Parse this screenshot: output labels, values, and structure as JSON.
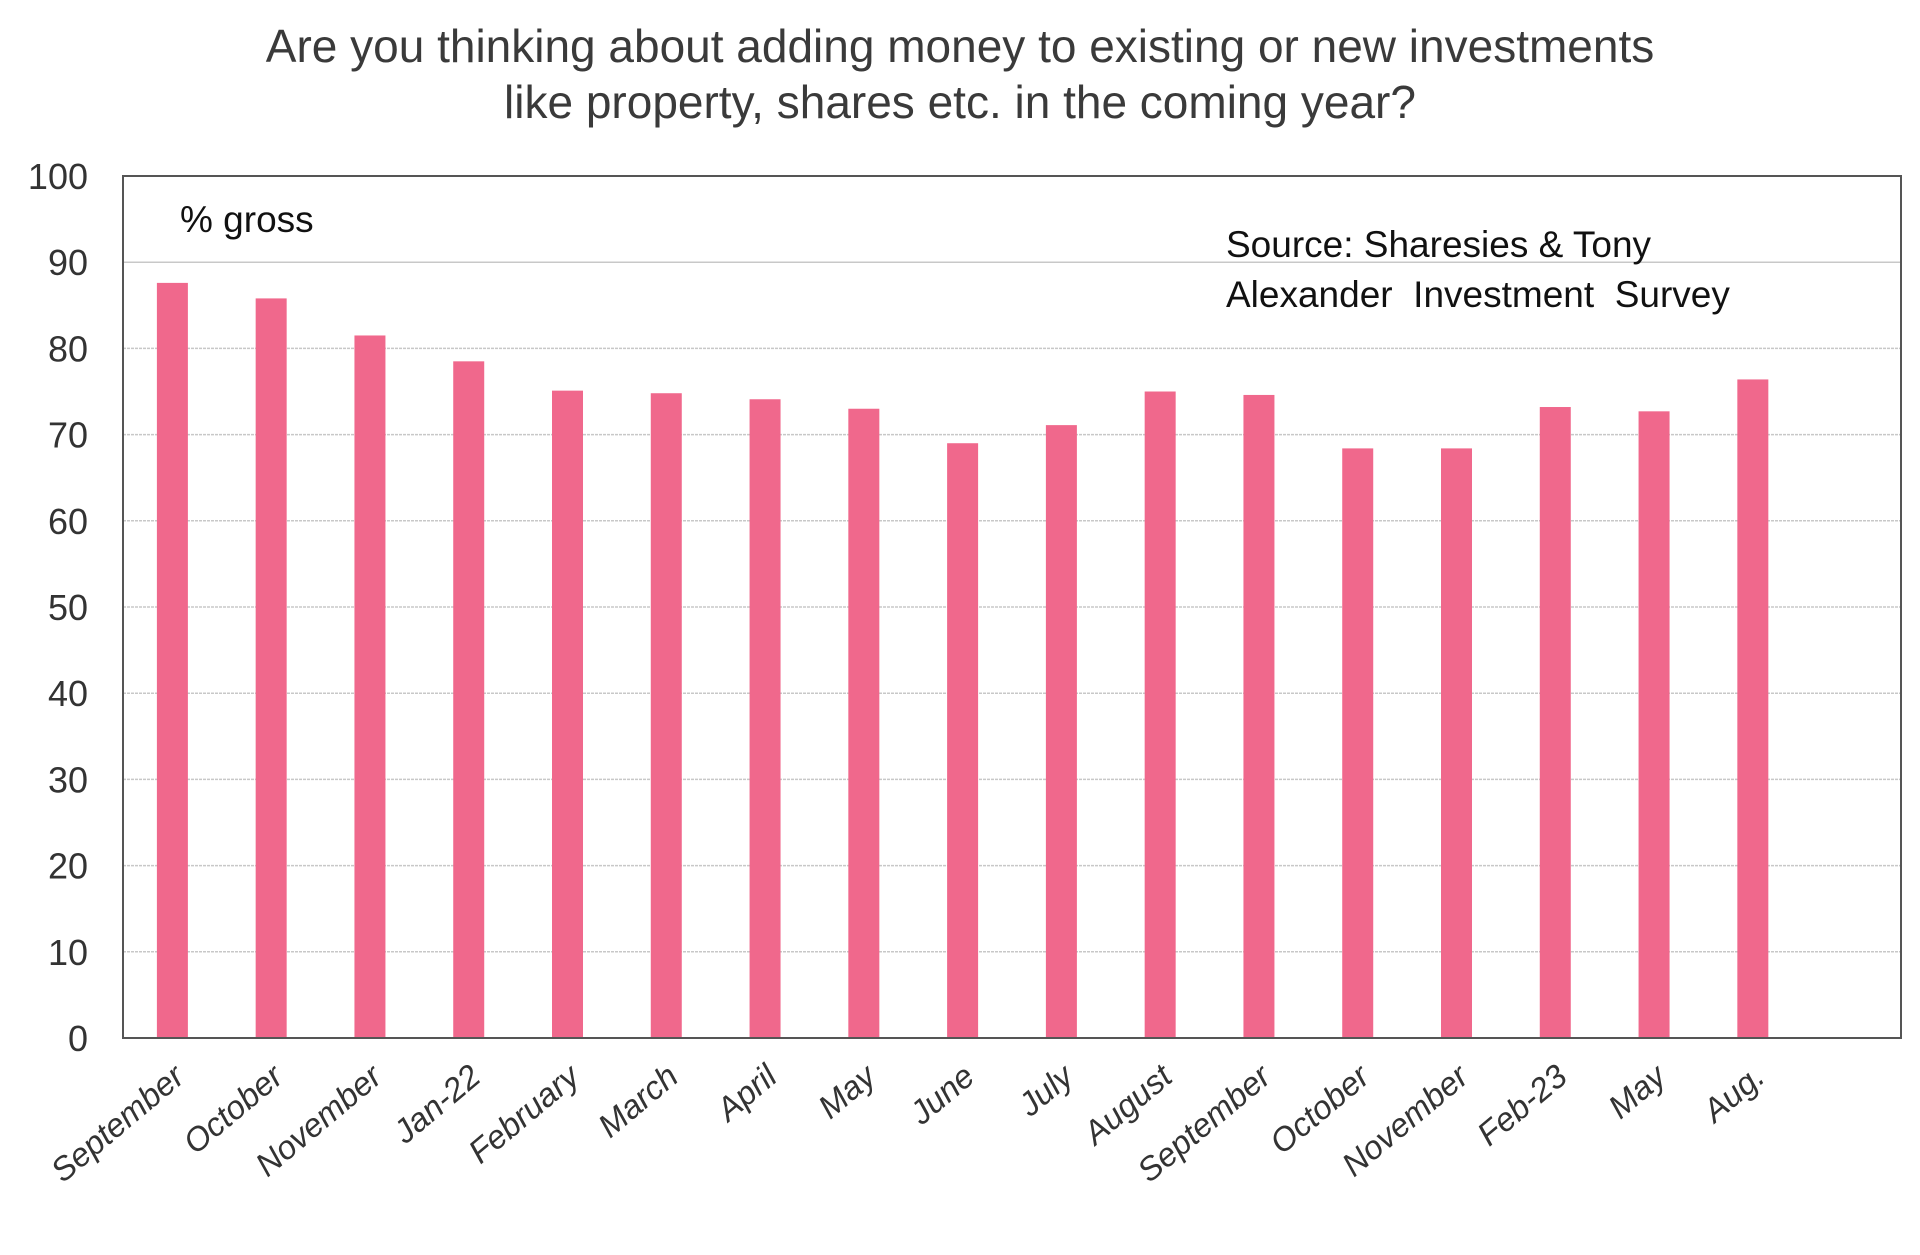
{
  "chart_data": {
    "type": "bar",
    "title": [
      "Are you thinking about adding money to existing or new investments",
      "like property, shares etc. in the coming year?"
    ],
    "xlabel": "",
    "ylabel": "% gross",
    "ylim": [
      0,
      100
    ],
    "yticks": [
      0,
      10,
      20,
      30,
      40,
      50,
      60,
      70,
      80,
      90,
      100
    ],
    "grid": true,
    "bar_color": "#f0688c",
    "categories": [
      "September",
      "October",
      "November",
      "Jan-22",
      "February",
      "March",
      "April",
      "May",
      "June",
      "July",
      "August",
      "September",
      "October",
      "November",
      "Feb-23",
      "May",
      "Aug."
    ],
    "values": [
      87.6,
      85.8,
      81.5,
      78.5,
      75.1,
      74.8,
      74.1,
      73.0,
      69.0,
      71.1,
      75.0,
      74.6,
      68.4,
      68.4,
      73.2,
      72.7,
      76.4
    ],
    "annotations": {
      "unit_label": "% gross",
      "source_lines": [
        "Source: Sharesies & Tony",
        "Alexander  Investment  Survey"
      ]
    }
  }
}
